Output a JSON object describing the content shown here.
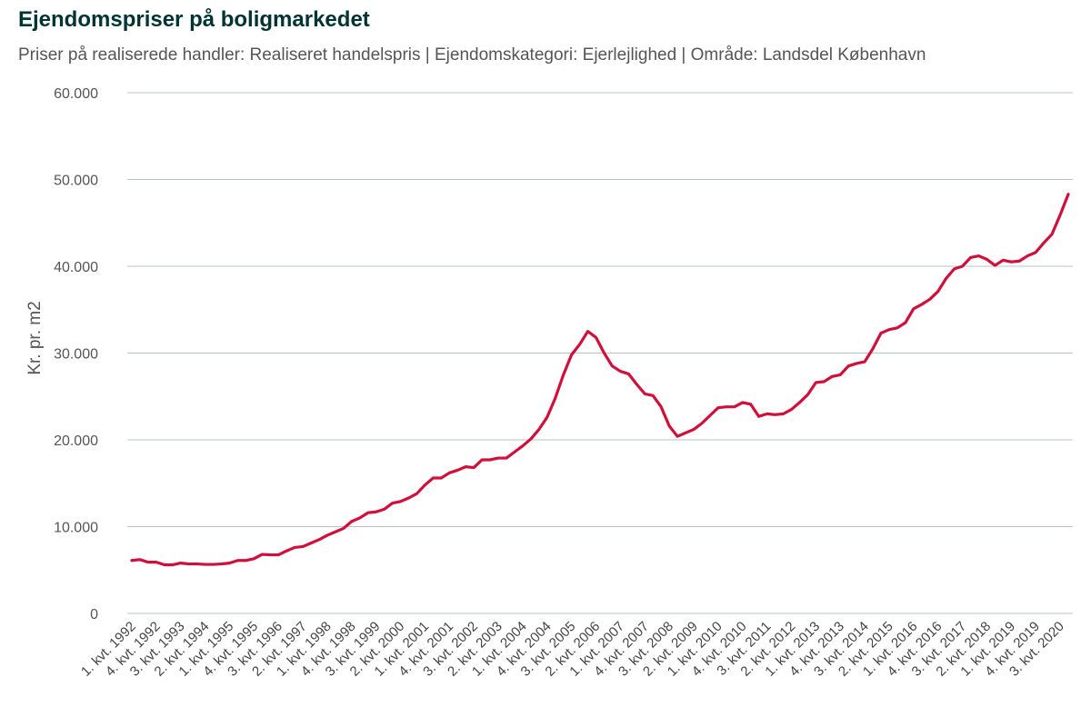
{
  "chart_data": {
    "type": "line",
    "title": "Ejendomspriser på boligmarkedet",
    "subtitle": "Priser på realiserede handler: Realiseret handelspris | Ejendomskategori: Ejerlejlighed | Område: Landsdel København",
    "ylabel": "Kr. pr. m2",
    "xlabel": "",
    "ylim": [
      0,
      60000
    ],
    "yticks": [
      "0",
      "10.000",
      "20.000",
      "30.000",
      "40.000",
      "50.000",
      "60.000"
    ],
    "xtick_labels": [
      "1. kvt. 1992",
      "4. kvt. 1992",
      "3. kvt. 1993",
      "2. kvt. 1994",
      "1. kvt. 1995",
      "4. kvt. 1995",
      "3. kvt. 1996",
      "2. kvt. 1997",
      "1. kvt. 1998",
      "4. kvt. 1998",
      "3. kvt. 1999",
      "2. kvt. 2000",
      "1. kvt. 2001",
      "4. kvt. 2001",
      "3. kvt. 2002",
      "2. kvt. 2003",
      "1. kvt. 2004",
      "4. kvt. 2004",
      "3. kvt. 2005",
      "2. kvt. 2006",
      "1. kvt. 2007",
      "4. kvt. 2007",
      "3. kvt. 2008",
      "2. kvt. 2009",
      "1. kvt. 2010",
      "4. kvt. 2010",
      "3. kvt. 2011",
      "2. kvt. 2012",
      "1. kvt. 2013",
      "4. kvt. 2013",
      "3. kvt. 2014",
      "2. kvt. 2015",
      "1. kvt. 2016",
      "4. kvt. 2016",
      "3. kvt. 2017",
      "2. kvt. 2018",
      "1. kvt. 2019",
      "4. kvt. 2019",
      "3. kvt. 2020"
    ],
    "grid": true,
    "legend": "none",
    "series": [
      {
        "color": "#d0103a",
        "start_period": "1. kvt. 1992",
        "values": [
          6100,
          6200,
          5900,
          5900,
          5600,
          5600,
          5800,
          5700,
          5700,
          5650,
          5650,
          5700,
          5800,
          6100,
          6100,
          6300,
          6800,
          6750,
          6750,
          7200,
          7600,
          7700,
          8100,
          8500,
          9000,
          9400,
          9800,
          10600,
          11000,
          11600,
          11700,
          12000,
          12700,
          12900,
          13300,
          13800,
          14800,
          15600,
          15600,
          16200,
          16500,
          16900,
          16800,
          17700,
          17700,
          17900,
          17900,
          18600,
          19300,
          20100,
          21200,
          22600,
          24800,
          27500,
          29800,
          31000,
          32500,
          31800,
          30000,
          28500,
          27900,
          27600,
          26400,
          25300,
          25100,
          23800,
          21600,
          20400,
          20800,
          21200,
          21900,
          22800,
          23700,
          23800,
          23800,
          24300,
          24100,
          22700,
          23000,
          22900,
          23000,
          23500,
          24300,
          25200,
          26600,
          26700,
          27300,
          27500,
          28500,
          28800,
          29000,
          30500,
          32300,
          32700,
          32900,
          33500,
          35100,
          35600,
          36200,
          37100,
          38600,
          39700,
          40000,
          41000,
          41200,
          40800,
          40100,
          40700,
          40500,
          40600,
          41200,
          41600,
          42700,
          43700,
          45900,
          48300
        ]
      }
    ]
  }
}
